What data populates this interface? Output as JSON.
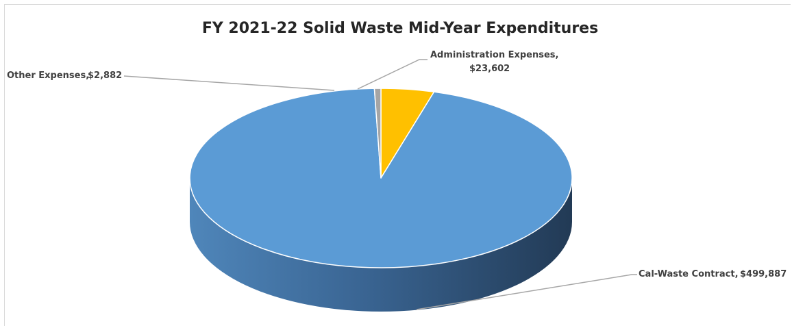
{
  "chart_data": {
    "type": "pie",
    "title": "FY 2021-22 Solid Waste Mid-Year Expenditures",
    "slices": [
      {
        "label": "Administration Expenses,",
        "value_text": "$23,602",
        "value": 23602,
        "color": "#ffc000"
      },
      {
        "label": "Cal-Waste Contract,",
        "value_text": "$499,887",
        "value": 499887,
        "color": "#5b9bd5"
      },
      {
        "label": "Other Expenses,",
        "value_text": "$2,882",
        "value": 2882,
        "color": "#a5a5a5"
      }
    ],
    "legend": "none",
    "style": "3d-pie"
  }
}
